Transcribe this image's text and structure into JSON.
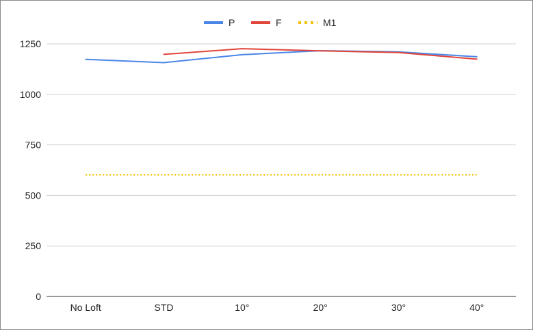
{
  "chart_data": {
    "type": "line",
    "title": "",
    "xlabel": "",
    "ylabel": "",
    "categories": [
      "No Loft",
      "STD",
      "10°",
      "20°",
      "30°",
      "40°"
    ],
    "ylim": [
      0,
      1250
    ],
    "yticks": [
      0,
      250,
      500,
      750,
      1000,
      1250
    ],
    "grid": true,
    "legend_position": "top",
    "series": [
      {
        "name": "P",
        "color": "#4a86e8",
        "style": "solid",
        "values": [
          1173,
          1157,
          1196,
          1216,
          1210,
          1186
        ]
      },
      {
        "name": "F",
        "color": "#e0453a",
        "style": "solid",
        "values": [
          null,
          1198,
          1226,
          1215,
          1207,
          1174
        ]
      },
      {
        "name": "M1",
        "color": "#f4c20d",
        "style": "dotted",
        "values": [
          602,
          602,
          602,
          602,
          602,
          602
        ]
      }
    ]
  }
}
